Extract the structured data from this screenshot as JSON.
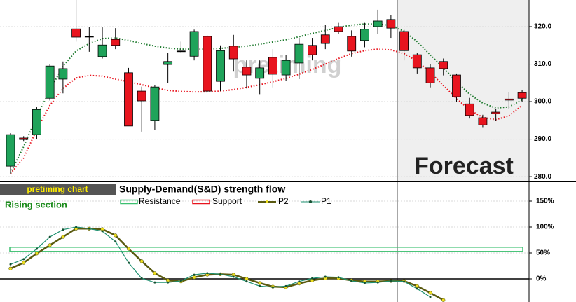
{
  "chart_data": [
    {
      "type": "candlestick",
      "watermark": "pretiming",
      "annotation": "Forecast",
      "forecast_from": 30,
      "ylim": [
        278.9,
        327.1
      ],
      "yticks": [
        {
          "value": 280,
          "label": "280.0"
        },
        {
          "value": 290,
          "label": "290.0"
        },
        {
          "value": 300,
          "label": "300.0"
        },
        {
          "value": 310,
          "label": "310.0"
        },
        {
          "value": 320,
          "label": "320.0"
        }
      ],
      "up_color": "#1fa35a",
      "down_color": "#e8141e",
      "open": [
        282.8,
        290.3,
        291.2,
        300.9,
        306.0,
        319.4,
        317.4,
        312.0,
        316.6,
        307.7,
        302.8,
        295.0,
        309.9,
        313.5,
        312.1,
        317.4,
        305.4,
        314.8,
        309.2,
        306.2,
        311.8,
        307.1,
        310.3,
        315.0,
        317.8,
        320.0,
        317.4,
        316.3,
        320.0,
        321.9,
        318.7,
        312.5,
        309.0,
        310.7,
        307.1,
        299.4,
        295.7,
        297.2,
        300.7,
        302.4
      ],
      "high": [
        291.6,
        290.8,
        298.5,
        310.0,
        310.7,
        327.1,
        320.0,
        319.8,
        319.6,
        309.0,
        304.0,
        304.5,
        313.0,
        316.0,
        319.2,
        317.6,
        315.0,
        317.8,
        311.0,
        311.0,
        314.0,
        312.5,
        317.0,
        317.0,
        320.5,
        321.0,
        319.0,
        321.0,
        324.5,
        323.0,
        319.2,
        313.0,
        310.0,
        311.5,
        307.5,
        301.0,
        296.5,
        298.0,
        302.5,
        303.0
      ],
      "low": [
        280.7,
        289.5,
        290.0,
        300.3,
        302.2,
        316.0,
        313.3,
        311.5,
        314.0,
        293.5,
        292.0,
        292.5,
        305.0,
        313.0,
        311.0,
        302.5,
        302.8,
        308.0,
        303.5,
        302.0,
        303.8,
        305.5,
        306.0,
        311.0,
        314.0,
        318.0,
        312.0,
        314.5,
        318.0,
        317.0,
        311.0,
        307.5,
        303.8,
        307.0,
        300.0,
        295.5,
        293.2,
        294.8,
        298.0,
        300.0
      ],
      "close": [
        291.2,
        289.9,
        297.9,
        309.5,
        308.8,
        317.2,
        317.4,
        315.1,
        315.0,
        293.5,
        300.2,
        303.9,
        310.7,
        313.5,
        318.7,
        302.8,
        313.6,
        311.4,
        307.1,
        309.0,
        307.3,
        311.0,
        315.3,
        312.5,
        315.5,
        318.7,
        313.5,
        319.3,
        321.5,
        319.6,
        313.6,
        309.0,
        305.0,
        308.8,
        301.3,
        296.3,
        293.8,
        296.8,
        300.4,
        300.9
      ],
      "bands": [
        {
          "color": "#1e7a2e",
          "values": [
            281.0,
            288.0,
            296.0,
            303.0,
            309.5,
            313.5,
            315.5,
            316.8,
            317.0,
            316.3,
            315.5,
            314.8,
            314.3,
            314.0,
            314.0,
            314.0,
            314.2,
            314.5,
            314.8,
            315.3,
            315.9,
            316.5,
            317.3,
            318.2,
            319.0,
            319.8,
            320.4,
            320.7,
            320.7,
            320.3,
            318.8,
            316.0,
            312.5,
            309.0,
            305.3,
            302.0,
            299.6,
            298.3,
            298.6,
            300.5
          ]
        },
        {
          "color": "#e8141e",
          "values": [
            280.8,
            285.0,
            292.5,
            299.0,
            303.5,
            306.3,
            307.0,
            306.8,
            306.0,
            305.3,
            304.5,
            303.7,
            303.0,
            302.7,
            302.6,
            302.6,
            302.8,
            303.2,
            303.8,
            304.5,
            305.3,
            306.2,
            307.3,
            308.6,
            310.0,
            311.5,
            312.8,
            313.6,
            314.0,
            313.8,
            312.8,
            310.8,
            307.8,
            304.3,
            300.8,
            297.8,
            295.8,
            295.2,
            296.2,
            299.0
          ]
        }
      ]
    },
    {
      "type": "line",
      "badge": "pretiming chart",
      "title": "Supply-Demand(S&D)  strength flow",
      "annotation": "Rising section",
      "ylim": [
        -44.6,
        183.8
      ],
      "yticks": [
        {
          "value": 0,
          "label": "0%"
        },
        {
          "value": 50,
          "label": "50%"
        },
        {
          "value": 100,
          "label": "100%"
        },
        {
          "value": 150,
          "label": "150%"
        }
      ],
      "levels": [
        {
          "name": "Resistance",
          "color": "#3cc070",
          "value": 57
        },
        {
          "name": "Support",
          "color": "#e8141e",
          "value": null
        }
      ],
      "series": [
        {
          "name": "P2",
          "color": "#5a5a10",
          "marker_color": "#f0e020",
          "values": [
            20,
            31,
            49,
            65,
            81,
            97,
            97,
            96,
            84,
            58,
            34,
            11,
            -3,
            -5,
            3,
            8,
            9,
            8,
            0,
            -8,
            -15,
            -16,
            -9,
            -3,
            1,
            1,
            -3,
            -5,
            -5,
            -4,
            -4,
            -14,
            -27,
            -41,
            null,
            null,
            null,
            null,
            null,
            null
          ]
        },
        {
          "name": "P1",
          "color": "#1e9070",
          "marker_color": "#145030",
          "values": [
            28,
            38,
            58,
            81,
            95,
            100,
            97,
            92,
            72,
            31,
            1,
            -7,
            -7,
            -4,
            8,
            11,
            9,
            4,
            -5,
            -14,
            -16,
            -14,
            -5,
            1,
            4,
            3,
            -4,
            -8,
            -7,
            -4,
            -5,
            -19,
            -35,
            null,
            null,
            null,
            null,
            null,
            null,
            null
          ]
        }
      ]
    }
  ]
}
